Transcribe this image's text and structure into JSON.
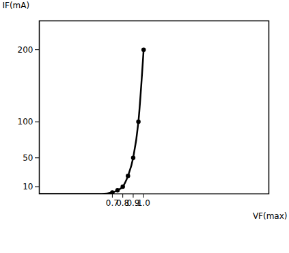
{
  "chart_data": {
    "type": "line",
    "x_label": "VF(max)",
    "y_label": "IF(mA)",
    "x": [
      0,
      0.6,
      0.7,
      0.75,
      0.8,
      0.85,
      0.9,
      0.95,
      1.0
    ],
    "values": [
      0,
      0,
      2,
      5,
      10,
      25,
      50,
      100,
      200
    ],
    "color": "#000000",
    "marker": "circle",
    "line_style": "solid",
    "xlim": [
      0,
      2.2
    ],
    "xticks": [
      0.7,
      0.8,
      0.9,
      {
        "value": 1,
        "label": "1.0"
      }
    ],
    "ylim": [
      0,
      240
    ],
    "yticks": [
      10,
      50,
      100,
      200
    ],
    "grid": false
  }
}
